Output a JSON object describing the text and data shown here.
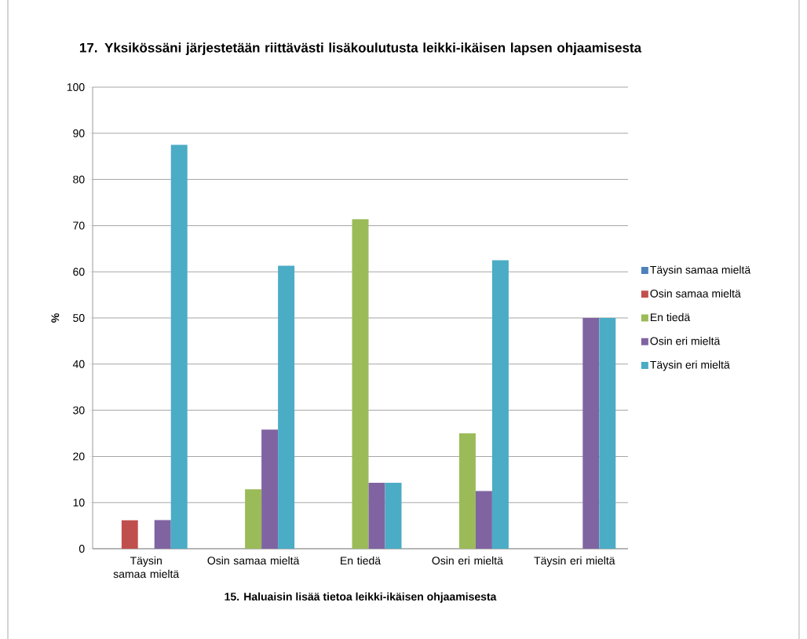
{
  "chart_data": {
    "type": "bar",
    "title": "17. Yksikössäni järjestetään riittävästi lisäkoulutusta leikki-ikäisen lapsen ohjaamisesta",
    "xlabel": "15. Haluaisin lisää tietoa leikki-ikäisen ohjaamisesta",
    "ylabel": "%",
    "categories": [
      "Täysin samaa mieltä",
      "Osin samaa mieltä",
      "En tiedä",
      "Osin eri mieltä",
      "Täysin eri mieltä"
    ],
    "series": [
      {
        "name": "Täysin samaa mieltä",
        "color": "#4f81bd",
        "values": [
          0,
          0,
          0,
          0,
          0
        ]
      },
      {
        "name": "Osin samaa mieltä",
        "color": "#c0504d",
        "values": [
          6.2,
          0,
          0,
          0,
          0
        ]
      },
      {
        "name": "En tiedä",
        "color": "#9bbb59",
        "values": [
          0,
          12.9,
          71.4,
          25,
          0
        ]
      },
      {
        "name": "Osin eri mieltä",
        "color": "#8064a2",
        "values": [
          6.2,
          25.8,
          14.3,
          12.5,
          50
        ]
      },
      {
        "name": "Täysin eri mieltä",
        "color": "#4bacc6",
        "values": [
          87.5,
          61.3,
          14.3,
          62.5,
          50
        ]
      }
    ],
    "ylim": [
      0,
      100
    ],
    "yticks": [
      0,
      10,
      20,
      30,
      40,
      50,
      60,
      70,
      80,
      90,
      100
    ],
    "grid": "y",
    "legend": "right"
  }
}
